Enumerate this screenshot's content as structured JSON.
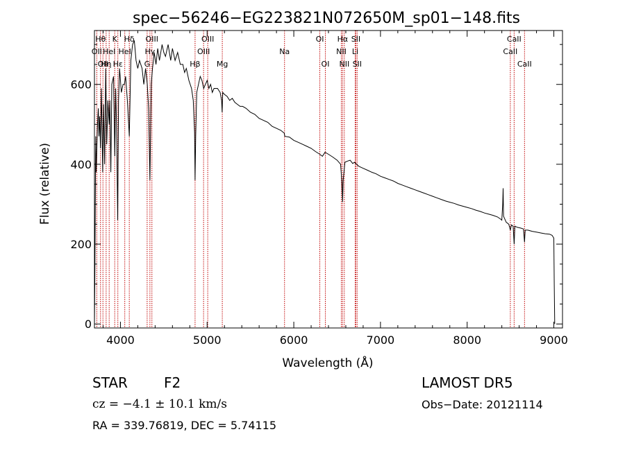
{
  "chart_data": {
    "type": "line",
    "title": "spec−56246−EG223821N072650M_sp01−148.fits",
    "xlabel": "Wavelength (Å)",
    "ylabel": "Flux (relative)",
    "xlim": [
      3700,
      9100
    ],
    "ylim": [
      -10,
      735
    ],
    "x_ticks": [
      4000,
      5000,
      6000,
      7000,
      8000,
      9000
    ],
    "y_ticks": [
      0,
      200,
      400,
      600
    ],
    "grid": false,
    "series": [
      {
        "points": [
          [
            3700,
            0
          ],
          [
            3705,
            120
          ],
          [
            3710,
            300
          ],
          [
            3715,
            470
          ],
          [
            3720,
            380
          ],
          [
            3735,
            500
          ],
          [
            3745,
            540
          ],
          [
            3752,
            470
          ],
          [
            3760,
            520
          ],
          [
            3770,
            440
          ],
          [
            3780,
            590
          ],
          [
            3795,
            380
          ],
          [
            3805,
            550
          ],
          [
            3818,
            400
          ],
          [
            3830,
            640
          ],
          [
            3842,
            450
          ],
          [
            3855,
            560
          ],
          [
            3870,
            500
          ],
          [
            3878,
            560
          ],
          [
            3889,
            380
          ],
          [
            3900,
            600
          ],
          [
            3920,
            620
          ],
          [
            3935,
            420
          ],
          [
            3945,
            590
          ],
          [
            3955,
            500
          ],
          [
            3968,
            260
          ],
          [
            3978,
            560
          ],
          [
            3990,
            640
          ],
          [
            4010,
            580
          ],
          [
            4030,
            600
          ],
          [
            4045,
            600
          ],
          [
            4060,
            620
          ],
          [
            4080,
            560
          ],
          [
            4102,
            470
          ],
          [
            4120,
            660
          ],
          [
            4140,
            700
          ],
          [
            4160,
            710
          ],
          [
            4180,
            660
          ],
          [
            4200,
            640
          ],
          [
            4220,
            660
          ],
          [
            4250,
            640
          ],
          [
            4270,
            600
          ],
          [
            4290,
            640
          ],
          [
            4310,
            600
          ],
          [
            4325,
            540
          ],
          [
            4340,
            360
          ],
          [
            4355,
            600
          ],
          [
            4370,
            640
          ],
          [
            4390,
            680
          ],
          [
            4410,
            650
          ],
          [
            4430,
            690
          ],
          [
            4450,
            660
          ],
          [
            4480,
            700
          ],
          [
            4500,
            680
          ],
          [
            4520,
            670
          ],
          [
            4550,
            700
          ],
          [
            4580,
            660
          ],
          [
            4600,
            690
          ],
          [
            4630,
            660
          ],
          [
            4660,
            680
          ],
          [
            4690,
            650
          ],
          [
            4720,
            650
          ],
          [
            4740,
            630
          ],
          [
            4760,
            640
          ],
          [
            4790,
            610
          ],
          [
            4820,
            590
          ],
          [
            4840,
            560
          ],
          [
            4855,
            480
          ],
          [
            4861,
            360
          ],
          [
            4868,
            470
          ],
          [
            4880,
            580
          ],
          [
            4900,
            600
          ],
          [
            4920,
            620
          ],
          [
            4940,
            610
          ],
          [
            4960,
            590
          ],
          [
            4980,
            600
          ],
          [
            5000,
            610
          ],
          [
            5020,
            590
          ],
          [
            5040,
            600
          ],
          [
            5060,
            580
          ],
          [
            5080,
            590
          ],
          [
            5100,
            590
          ],
          [
            5120,
            590
          ],
          [
            5150,
            580
          ],
          [
            5167,
            560
          ],
          [
            5173,
            530
          ],
          [
            5180,
            580
          ],
          [
            5200,
            575
          ],
          [
            5230,
            570
          ],
          [
            5260,
            560
          ],
          [
            5290,
            565
          ],
          [
            5320,
            555
          ],
          [
            5350,
            550
          ],
          [
            5380,
            545
          ],
          [
            5410,
            545
          ],
          [
            5450,
            540
          ],
          [
            5500,
            530
          ],
          [
            5550,
            525
          ],
          [
            5600,
            515
          ],
          [
            5650,
            510
          ],
          [
            5700,
            505
          ],
          [
            5750,
            495
          ],
          [
            5800,
            490
          ],
          [
            5850,
            485
          ],
          [
            5890,
            478
          ],
          [
            5896,
            470
          ],
          [
            5950,
            468
          ],
          [
            6000,
            460
          ],
          [
            6050,
            455
          ],
          [
            6100,
            450
          ],
          [
            6150,
            445
          ],
          [
            6200,
            440
          ],
          [
            6250,
            432
          ],
          [
            6300,
            425
          ],
          [
            6330,
            420
          ],
          [
            6360,
            430
          ],
          [
            6400,
            425
          ],
          [
            6450,
            418
          ],
          [
            6500,
            410
          ],
          [
            6540,
            400
          ],
          [
            6556,
            350
          ],
          [
            6563,
            305
          ],
          [
            6570,
            360
          ],
          [
            6590,
            405
          ],
          [
            6620,
            408
          ],
          [
            6650,
            410
          ],
          [
            6680,
            402
          ],
          [
            6700,
            405
          ],
          [
            6750,
            395
          ],
          [
            6800,
            390
          ],
          [
            6850,
            385
          ],
          [
            6900,
            380
          ],
          [
            6950,
            376
          ],
          [
            7000,
            370
          ],
          [
            7050,
            366
          ],
          [
            7100,
            362
          ],
          [
            7150,
            358
          ],
          [
            7200,
            352
          ],
          [
            7250,
            348
          ],
          [
            7300,
            344
          ],
          [
            7350,
            340
          ],
          [
            7400,
            336
          ],
          [
            7450,
            332
          ],
          [
            7500,
            328
          ],
          [
            7550,
            324
          ],
          [
            7600,
            320
          ],
          [
            7650,
            316
          ],
          [
            7700,
            312
          ],
          [
            7750,
            308
          ],
          [
            7800,
            305
          ],
          [
            7850,
            302
          ],
          [
            7900,
            298
          ],
          [
            7950,
            295
          ],
          [
            8000,
            292
          ],
          [
            8050,
            289
          ],
          [
            8100,
            285
          ],
          [
            8150,
            282
          ],
          [
            8200,
            278
          ],
          [
            8250,
            275
          ],
          [
            8300,
            272
          ],
          [
            8350,
            268
          ],
          [
            8390,
            262
          ],
          [
            8400,
            260
          ],
          [
            8410,
            300
          ],
          [
            8415,
            340
          ],
          [
            8420,
            270
          ],
          [
            8450,
            255
          ],
          [
            8480,
            250
          ],
          [
            8498,
            235
          ],
          [
            8510,
            248
          ],
          [
            8530,
            245
          ],
          [
            8542,
            200
          ],
          [
            8550,
            245
          ],
          [
            8580,
            242
          ],
          [
            8620,
            240
          ],
          [
            8650,
            238
          ],
          [
            8662,
            205
          ],
          [
            8670,
            235
          ],
          [
            8700,
            235
          ],
          [
            8750,
            232
          ],
          [
            8800,
            230
          ],
          [
            8850,
            228
          ],
          [
            8900,
            226
          ],
          [
            8950,
            225
          ],
          [
            8980,
            222
          ],
          [
            9000,
            215
          ],
          [
            9005,
            100
          ],
          [
            9010,
            0
          ]
        ]
      }
    ],
    "lines": [
      {
        "x": 3727,
        "label": "OII",
        "row": 2
      },
      {
        "x": 3770,
        "label": "Hθ",
        "row": 1
      },
      {
        "x": 3798,
        "label": "OII",
        "row": 3
      },
      {
        "x": 3835,
        "label": "Hη",
        "row": 3
      },
      {
        "x": 3870,
        "label": "HeI",
        "row": 2
      },
      {
        "x": 3934,
        "label": "K",
        "row": 1
      },
      {
        "x": 3970,
        "label": "Hε",
        "row": 3
      },
      {
        "x": 4050,
        "label": "HeI",
        "row": 2
      },
      {
        "x": 4102,
        "label": "Hδ",
        "row": 1
      },
      {
        "x": 4308,
        "label": "G",
        "row": 3
      },
      {
        "x": 4340,
        "label": "Hγ",
        "row": 2
      },
      {
        "x": 4363,
        "label": "OIII",
        "row": 1
      },
      {
        "x": 4861,
        "label": "Hβ",
        "row": 3
      },
      {
        "x": 4959,
        "label": "OIII",
        "row": 2
      },
      {
        "x": 5007,
        "label": "OIII",
        "row": 1
      },
      {
        "x": 5175,
        "label": "Mg",
        "row": 3
      },
      {
        "x": 5893,
        "label": "Na",
        "row": 2
      },
      {
        "x": 6300,
        "label": "OI",
        "row": 1
      },
      {
        "x": 6364,
        "label": "OI",
        "row": 3
      },
      {
        "x": 6548,
        "label": "NII",
        "row": 2
      },
      {
        "x": 6563,
        "label": "Hα",
        "row": 1
      },
      {
        "x": 6583,
        "label": "NII",
        "row": 3
      },
      {
        "x": 6708,
        "label": "Li",
        "row": 2
      },
      {
        "x": 6716,
        "label": "SII",
        "row": 1
      },
      {
        "x": 6731,
        "label": "SII",
        "row": 3
      },
      {
        "x": 8498,
        "label": "CaII",
        "row": 2
      },
      {
        "x": 8542,
        "label": "CaII",
        "row": 1
      },
      {
        "x": 8662,
        "label": "CaII",
        "row": 3
      }
    ]
  },
  "info": {
    "object_type": "STAR",
    "subclass": "F2",
    "survey": "LAMOST DR5",
    "redshift": "cz = −4.1 ± 10.1 km/s",
    "obs_date": "Obs−Date: 20121114",
    "coords": "RA = 339.76819, DEC =   5.74115"
  }
}
